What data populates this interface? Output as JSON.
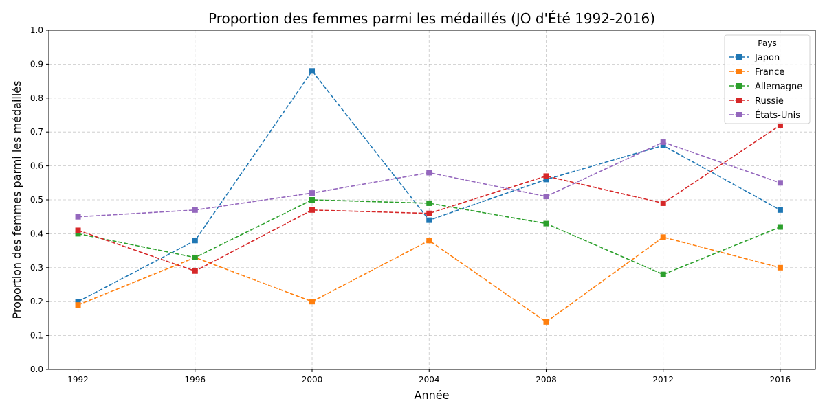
{
  "chart_data": {
    "type": "line",
    "title": "Proportion des femmes parmi les médaillés (JO d'Été 1992-2016)",
    "xlabel": "Année",
    "ylabel": "Proportion des femmes parmi les médaillés",
    "x": [
      1992,
      1996,
      2000,
      2004,
      2008,
      2012,
      2016
    ],
    "xlim": [
      1991,
      2017.2
    ],
    "ylim": [
      0,
      1
    ],
    "yticks": [
      "0.0",
      "0.1",
      "0.2",
      "0.3",
      "0.4",
      "0.5",
      "0.6",
      "0.7",
      "0.8",
      "0.9",
      "1.0"
    ],
    "grid": true,
    "line_style": "dashed",
    "marker": "square",
    "legend": {
      "title": "Pays",
      "placement": "top-right"
    },
    "series": [
      {
        "name": "Japon",
        "color": "#1f77b4",
        "values": [
          0.2,
          0.38,
          0.88,
          0.44,
          0.56,
          0.66,
          0.47
        ]
      },
      {
        "name": "France",
        "color": "#ff7f0e",
        "values": [
          0.19,
          0.33,
          0.2,
          0.38,
          0.14,
          0.39,
          0.3
        ]
      },
      {
        "name": "Allemagne",
        "color": "#2ca02c",
        "values": [
          0.4,
          0.33,
          0.5,
          0.49,
          0.43,
          0.28,
          0.42
        ]
      },
      {
        "name": "Russie",
        "color": "#d62728",
        "values": [
          0.41,
          0.29,
          0.47,
          0.46,
          0.57,
          0.49,
          0.72
        ]
      },
      {
        "name": "États-Unis",
        "color": "#9467bd",
        "values": [
          0.45,
          0.47,
          0.52,
          0.58,
          0.51,
          0.67,
          0.55
        ]
      }
    ]
  }
}
